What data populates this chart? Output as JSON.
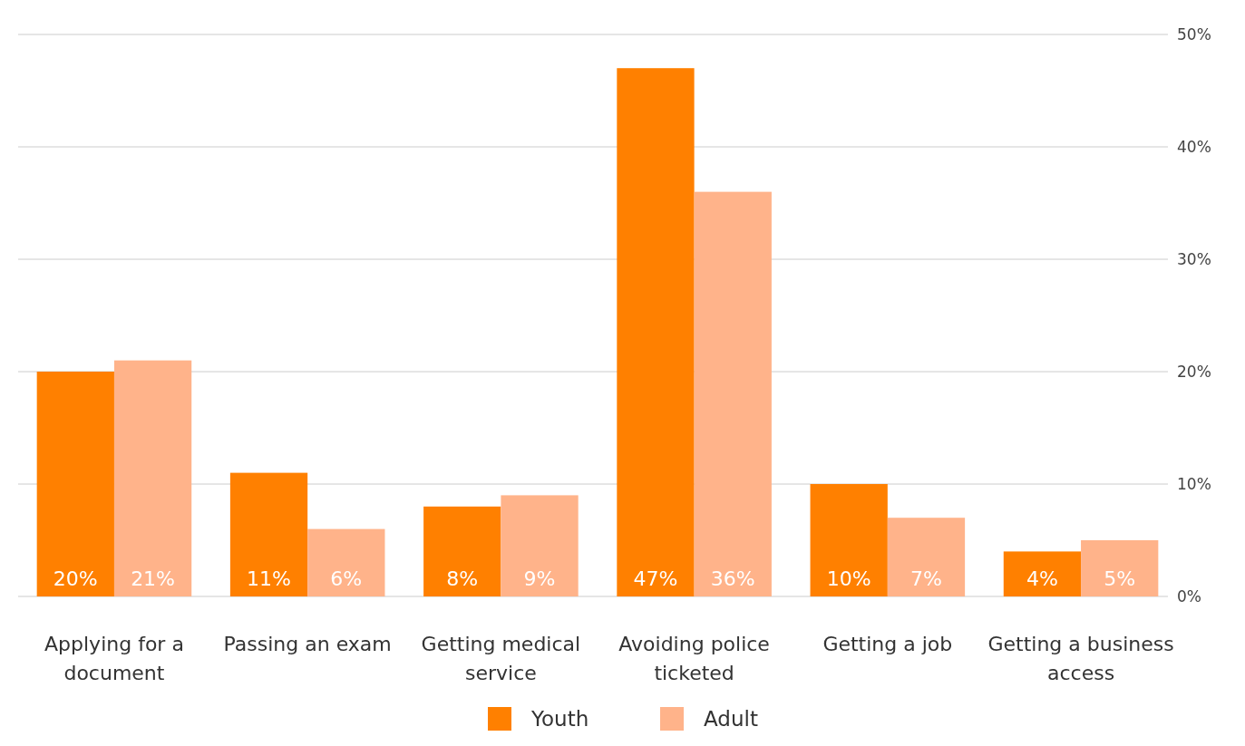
{
  "chart_data": {
    "type": "bar",
    "categories": [
      "Applying for a document",
      "Passing an exam",
      "Getting medical service",
      "Avoiding police ticketed",
      "Getting a job",
      "Getting a business access"
    ],
    "series": [
      {
        "name": "Youth",
        "color": "#ff8000",
        "values": [
          20,
          11,
          8,
          47,
          10,
          4
        ],
        "value_labels": [
          "20%",
          "11%",
          "8%",
          "47%",
          "10%",
          "4%"
        ]
      },
      {
        "name": "Adult",
        "color": "#ffb38a",
        "values": [
          21,
          6,
          9,
          36,
          7,
          5
        ],
        "value_labels": [
          "21%",
          "6%",
          "9%",
          "36%",
          "7%",
          "5%"
        ]
      }
    ],
    "ylim": [
      0,
      50
    ],
    "yticks": [
      {
        "value": 0,
        "label": "0%"
      },
      {
        "value": 10,
        "label": "10%"
      },
      {
        "value": 20,
        "label": "20%"
      },
      {
        "value": 30,
        "label": "30%"
      },
      {
        "value": 40,
        "label": "40%"
      },
      {
        "value": 50,
        "label": "50%"
      }
    ],
    "grid": "y",
    "legend": "bottom"
  }
}
